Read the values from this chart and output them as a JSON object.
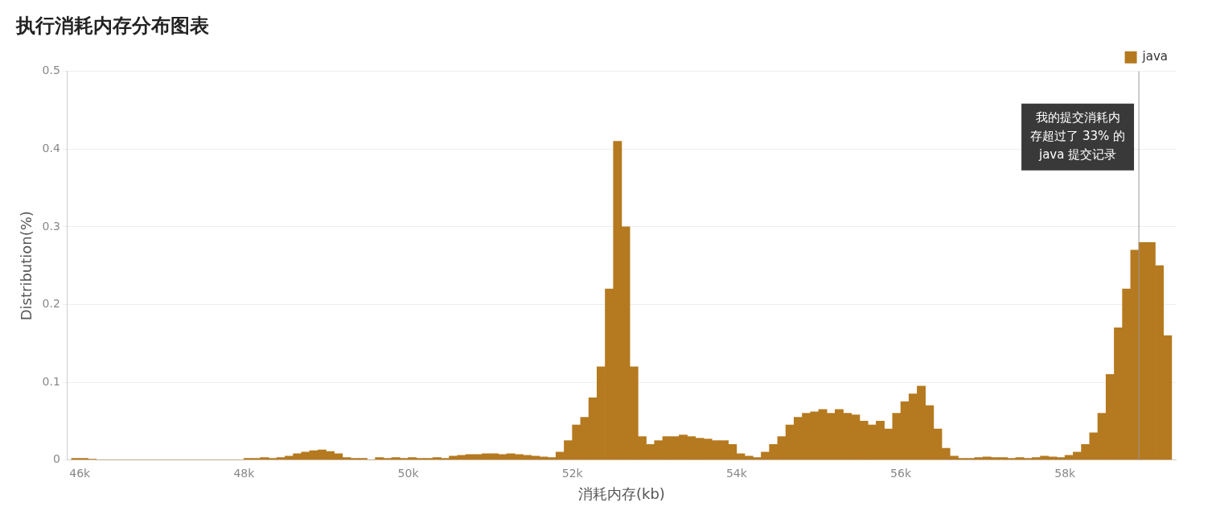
{
  "chart_data": {
    "type": "histogram",
    "title": "执行消耗内存分布图表",
    "xlabel": "消耗内存(kb)",
    "ylabel": "Distribution(%)",
    "bins": [
      45900,
      46000,
      46100,
      46200,
      46300,
      46400,
      46500,
      46600,
      46700,
      46800,
      46900,
      47000,
      47100,
      47200,
      47300,
      47400,
      47500,
      47600,
      47700,
      47800,
      47900,
      48000,
      48100,
      48200,
      48300,
      48400,
      48500,
      48600,
      48700,
      48800,
      48900,
      49000,
      49100,
      49200,
      49300,
      49400,
      49500,
      49600,
      49700,
      49800,
      49900,
      50000,
      50100,
      50200,
      50300,
      50400,
      50500,
      50600,
      50700,
      50800,
      50900,
      51000,
      51100,
      51200,
      51300,
      51400,
      51500,
      51600,
      51700,
      51800,
      51900,
      52000,
      52100,
      52200,
      52300,
      52400,
      52500,
      52600,
      52700,
      52800,
      52900,
      53000,
      53100,
      53200,
      53300,
      53400,
      53500,
      53600,
      53700,
      53800,
      53900,
      54000,
      54100,
      54200,
      54300,
      54400,
      54500,
      54600,
      54700,
      54800,
      54900,
      55000,
      55100,
      55200,
      55300,
      55400,
      55500,
      55600,
      55700,
      55800,
      55900,
      56000,
      56100,
      56200,
      56300,
      56400,
      56500,
      56600,
      56700,
      56800,
      56900,
      57000,
      57100,
      57200,
      57300,
      57400,
      57500,
      57600,
      57700,
      57800,
      57900,
      58000,
      58100,
      58200,
      58300,
      58400,
      58500,
      58600,
      58700,
      58800,
      58900,
      59000,
      59100,
      59200,
      59300
    ],
    "series": [
      {
        "name": "java",
        "color": "#b5791f",
        "values": [
          0.002,
          0.002,
          0.001,
          0,
          0,
          0,
          0,
          0,
          0,
          0,
          0,
          0,
          0,
          0,
          0,
          0,
          0,
          0,
          0,
          0,
          0,
          0.002,
          0.002,
          0.003,
          0.002,
          0.003,
          0.005,
          0.008,
          0.01,
          0.012,
          0.013,
          0.011,
          0.008,
          0.003,
          0.002,
          0.002,
          0,
          0.003,
          0.002,
          0.003,
          0.002,
          0.003,
          0.002,
          0.002,
          0.003,
          0.002,
          0.005,
          0.006,
          0.007,
          0.007,
          0.008,
          0.008,
          0.007,
          0.008,
          0.007,
          0.006,
          0.005,
          0.004,
          0.003,
          0.01,
          0.025,
          0.045,
          0.055,
          0.08,
          0.12,
          0.22,
          0.41,
          0.3,
          0.12,
          0.03,
          0.02,
          0.025,
          0.03,
          0.03,
          0.032,
          0.03,
          0.028,
          0.027,
          0.025,
          0.025,
          0.02,
          0.008,
          0.005,
          0.003,
          0.01,
          0.02,
          0.03,
          0.045,
          0.055,
          0.06,
          0.062,
          0.065,
          0.06,
          0.065,
          0.06,
          0.058,
          0.05,
          0.045,
          0.05,
          0.04,
          0.06,
          0.075,
          0.085,
          0.095,
          0.07,
          0.04,
          0.015,
          0.005,
          0.002,
          0.002,
          0.003,
          0.004,
          0.003,
          0.003,
          0.002,
          0.003,
          0.002,
          0.003,
          0.005,
          0.004,
          0.003,
          0.006,
          0.01,
          0.02,
          0.035,
          0.06,
          0.11,
          0.17,
          0.22,
          0.27,
          0.28,
          0.28,
          0.25,
          0.16
        ]
      }
    ],
    "xlim": [
      45850,
      59350
    ],
    "xticks": [
      {
        "value": 46000,
        "label": "46k"
      },
      {
        "value": 48000,
        "label": "48k"
      },
      {
        "value": 50000,
        "label": "50k"
      },
      {
        "value": 52000,
        "label": "52k"
      },
      {
        "value": 54000,
        "label": "54k"
      },
      {
        "value": 56000,
        "label": "56k"
      },
      {
        "value": 58000,
        "label": "58k"
      }
    ],
    "ylim": [
      0,
      0.5
    ],
    "yticks": [
      0,
      0.1,
      0.2,
      0.3,
      0.4,
      0.5
    ],
    "grid": "y",
    "legend": "top right",
    "ref_lines": [
      {
        "axis": "x",
        "value": 58900,
        "label": "我的提交消耗内存超过了 33% 的 java 提交记录",
        "color": "#999999"
      }
    ]
  }
}
